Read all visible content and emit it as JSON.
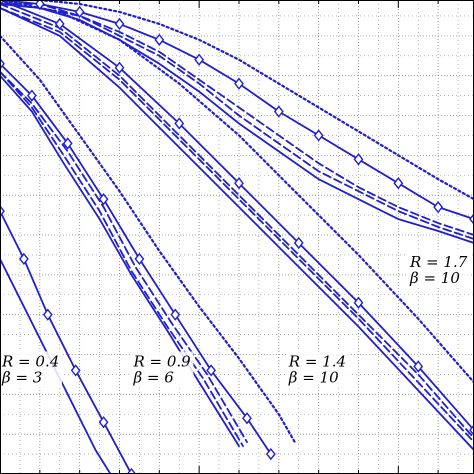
{
  "chart_data": {
    "type": "line",
    "title": "",
    "xlabel": "",
    "ylabel": "",
    "xlim": [
      0,
      11.9
    ],
    "ylim": [
      0,
      11.9
    ],
    "grid": true,
    "series_color": "#1f1fcf",
    "legend": "none",
    "annotations": [
      {
        "r": "R = 0.4",
        "beta": "β = 3",
        "x": 0.0,
        "y": 2.7
      },
      {
        "r": "R = 0.9",
        "beta": "β = 6",
        "x": 3.3,
        "y": 2.7
      },
      {
        "r": "R = 1.4",
        "beta": "β = 10",
        "x": 7.2,
        "y": 2.7
      },
      {
        "r": "R = 1.7",
        "beta": "β = 10",
        "x": 10.4,
        "y": 5.2
      }
    ],
    "groups": [
      {
        "label": "R = 0.4, β = 3",
        "series": [
          {
            "style": "solid",
            "markers": false,
            "x": [
              0,
              0.6,
              1.2,
              1.8,
              2.4,
              2.9
            ],
            "y": [
              5.4,
              4.2,
              3.0,
              1.8,
              0.6,
              -0.2
            ]
          },
          {
            "style": "solid",
            "markers": true,
            "x": [
              0,
              0.6,
              1.2,
              1.9,
              2.6,
              3.3
            ],
            "y": [
              6.6,
              5.4,
              4.0,
              2.6,
              1.3,
              0.0
            ]
          }
        ]
      },
      {
        "label": "R = 0.9, β = 6",
        "series": [
          {
            "style": "solid",
            "markers": false,
            "x": [
              0,
              0.8,
              1.6,
              2.5,
              3.3,
              4.2,
              5.0,
              6.0
            ],
            "y": [
              10.0,
              9.1,
              7.8,
              6.4,
              5.0,
              3.6,
              2.3,
              0.7
            ]
          },
          {
            "style": "dashed",
            "markers": false,
            "x": [
              0,
              0.8,
              1.6,
              2.5,
              3.3,
              4.2,
              5.1,
              6.1
            ],
            "y": [
              10.1,
              9.2,
              8.0,
              6.6,
              5.1,
              3.7,
              2.4,
              0.7
            ]
          },
          {
            "style": "dashed",
            "markers": false,
            "x": [
              0,
              0.8,
              1.7,
              2.6,
              3.4,
              4.3,
              5.2,
              6.2
            ],
            "y": [
              10.1,
              9.3,
              8.1,
              6.7,
              5.2,
              3.8,
              2.5,
              0.8
            ]
          },
          {
            "style": "solid",
            "markers": true,
            "x": [
              0,
              0.8,
              1.7,
              2.6,
              3.5,
              4.4,
              5.3,
              6.2,
              6.8
            ],
            "y": [
              10.3,
              9.5,
              8.3,
              6.9,
              5.4,
              4.0,
              2.6,
              1.4,
              0.5
            ]
          },
          {
            "style": "dotted",
            "markers": false,
            "x": [
              0,
              1.0,
              2.0,
              3.0,
              4.0,
              5.0,
              6.0,
              7.0,
              7.4
            ],
            "y": [
              11.0,
              9.9,
              8.5,
              7.1,
              5.6,
              4.2,
              2.9,
              1.5,
              0.8
            ]
          }
        ]
      },
      {
        "label": "R = 1.4, β = 10",
        "series": [
          {
            "style": "solid",
            "markers": false,
            "x": [
              0,
              1.5,
              3.0,
              4.5,
              6.0,
              7.5,
              9.0,
              10.5,
              11.9
            ],
            "y": [
              11.7,
              11.0,
              9.7,
              8.2,
              6.7,
              5.2,
              3.7,
              2.1,
              0.6
            ]
          },
          {
            "style": "dashed",
            "markers": false,
            "x": [
              0,
              1.5,
              3.0,
              4.5,
              6.0,
              7.5,
              9.0,
              10.5,
              11.9
            ],
            "y": [
              11.7,
              11.1,
              9.9,
              8.4,
              6.9,
              5.4,
              3.9,
              2.3,
              0.8
            ]
          },
          {
            "style": "dashed",
            "markers": false,
            "x": [
              0,
              1.5,
              3.0,
              4.5,
              6.0,
              7.5,
              9.0,
              10.5,
              11.9
            ],
            "y": [
              11.8,
              11.2,
              10.0,
              8.5,
              7.0,
              5.5,
              4.0,
              2.5,
              0.9
            ]
          },
          {
            "style": "solid",
            "markers": true,
            "x": [
              0,
              1.5,
              3.0,
              4.5,
              6.0,
              7.5,
              9.0,
              10.5,
              11.9
            ],
            "y": [
              11.9,
              11.3,
              10.2,
              8.8,
              7.3,
              5.8,
              4.3,
              2.7,
              1.1
            ]
          },
          {
            "style": "dotted",
            "markers": false,
            "x": [
              0,
              1.5,
              3.0,
              4.5,
              6.0,
              7.5,
              9.0,
              10.5,
              11.9
            ],
            "y": [
              11.9,
              11.6,
              10.9,
              9.8,
              8.5,
              7.0,
              5.5,
              3.9,
              2.3
            ]
          }
        ]
      },
      {
        "label": "R = 1.7, β = 10",
        "series": [
          {
            "style": "solid",
            "markers": false,
            "x": [
              0,
              1.0,
              2.0,
              3.0,
              4.0,
              5.0,
              6.0,
              7.0,
              8.0,
              9.0,
              10.0,
              11.0,
              11.9
            ],
            "y": [
              11.8,
              11.7,
              11.4,
              10.9,
              10.3,
              9.6,
              8.8,
              8.1,
              7.4,
              6.9,
              6.4,
              6.1,
              5.8
            ]
          },
          {
            "style": "dashed",
            "markers": false,
            "x": [
              0,
              1.0,
              2.0,
              3.0,
              4.0,
              5.0,
              6.0,
              7.0,
              8.0,
              9.0,
              10.0,
              11.0,
              11.9
            ],
            "y": [
              11.8,
              11.7,
              11.5,
              11.0,
              10.5,
              9.8,
              9.0,
              8.3,
              7.6,
              7.1,
              6.6,
              6.2,
              5.9
            ]
          },
          {
            "style": "dashed",
            "markers": false,
            "x": [
              0,
              1.0,
              2.0,
              3.0,
              4.0,
              5.0,
              6.0,
              7.0,
              8.0,
              9.0,
              10.0,
              11.0,
              11.9
            ],
            "y": [
              11.8,
              11.8,
              11.5,
              11.1,
              10.6,
              9.9,
              9.2,
              8.5,
              7.8,
              7.2,
              6.7,
              6.3,
              6.0
            ]
          },
          {
            "style": "solid",
            "markers": true,
            "x": [
              0,
              1.0,
              2.0,
              3.0,
              4.0,
              5.0,
              6.0,
              7.0,
              8.0,
              9.0,
              10.0,
              11.0,
              11.9
            ],
            "y": [
              11.9,
              11.8,
              11.6,
              11.3,
              10.9,
              10.4,
              9.8,
              9.1,
              8.5,
              7.9,
              7.3,
              6.7,
              6.4
            ]
          },
          {
            "style": "dotted",
            "markers": false,
            "x": [
              0,
              1.0,
              2.0,
              3.0,
              4.0,
              5.0,
              6.0,
              7.0,
              8.0,
              9.0,
              10.0,
              11.0,
              11.9
            ],
            "y": [
              11.9,
              11.9,
              11.8,
              11.6,
              11.3,
              10.9,
              10.4,
              9.8,
              9.2,
              8.6,
              8.0,
              7.4,
              6.9
            ]
          }
        ]
      }
    ]
  }
}
